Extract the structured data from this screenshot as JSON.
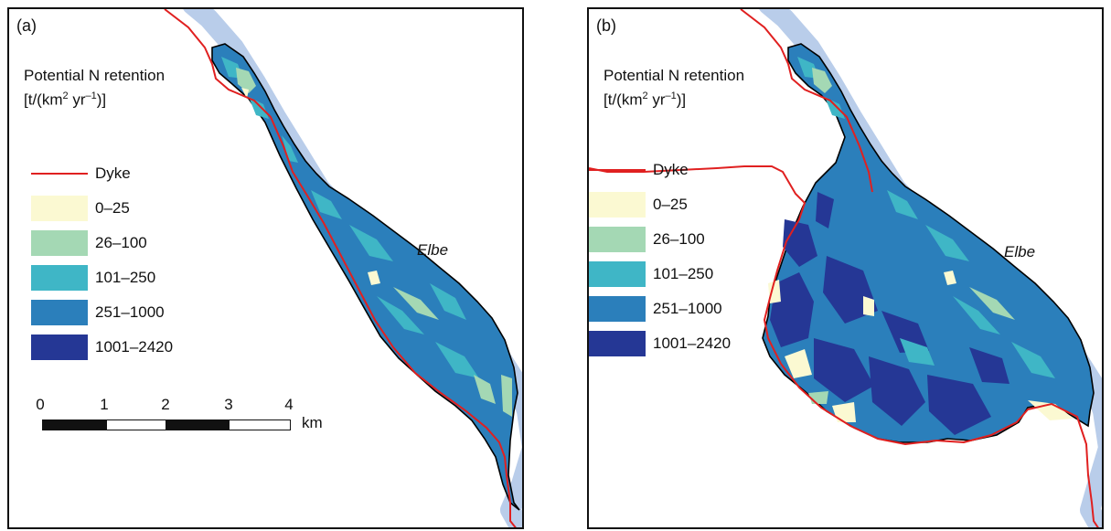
{
  "panels": [
    {
      "label": "(a)"
    },
    {
      "label": "(b)"
    }
  ],
  "legend": {
    "title_line1": "Potential N retention",
    "title_line2_prefix": "[t/(km",
    "title_line2_sup1": "2",
    "title_line2_mid": " yr",
    "title_line2_sup2": "–1",
    "title_line2_suffix": ")]",
    "dyke_label": "Dyke",
    "dyke_color": "#e02020",
    "classes": [
      {
        "label": "0–25",
        "color": "#fbf9d2"
      },
      {
        "label": "26–100",
        "color": "#a4d8b4"
      },
      {
        "label": "101–250",
        "color": "#3fb6c6"
      },
      {
        "label": "251–1000",
        "color": "#2b7fbb"
      },
      {
        "label": "1001–2420",
        "color": "#253795"
      }
    ]
  },
  "river": {
    "label": "Elbe",
    "color": "#b9cdea"
  },
  "scale_bar": {
    "ticks": [
      "0",
      "1",
      "2",
      "3",
      "4"
    ],
    "unit": "km"
  }
}
